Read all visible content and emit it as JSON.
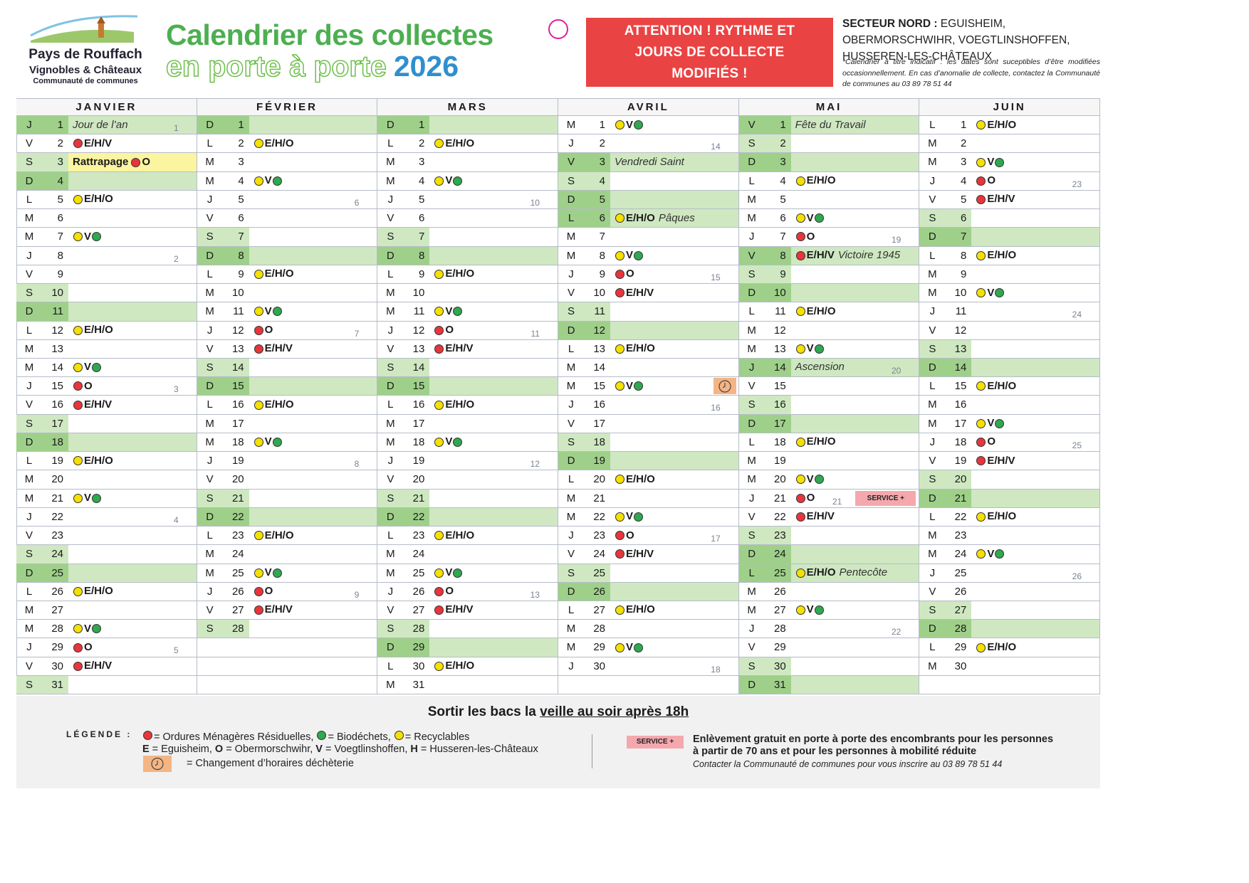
{
  "header": {
    "logo": [
      "Pays de Rouffach",
      "Vignobles & Châteaux",
      "Communauté de communes"
    ],
    "title_line1": "Calendrier des collectes",
    "title_line2": "en porte à porte",
    "year": "2026",
    "attention": "ATTENTION ! RYTHME ET JOURS DE COLLECTE MODIFIÉS !",
    "sector_label": "SECTEUR NORD :",
    "sector_towns": "EGUISHEIM, OBERMORSCHWIHR, VOEGTLINSHOFFEN, HUSSEREN-LES-CHÂTEAUX",
    "note": "*Calendrier à titre indicatif : les dates sont suceptibles d’être modifiées occasionnellement. En cas d’anomalie de collecte, contactez la Communauté de communes au 03 89 78 51 44"
  },
  "dot_colors": {
    "red": "#e8353c",
    "green": "#2fa84f",
    "yellow": "#f5e000"
  },
  "collection_styles": {
    "E/H/O": {
      "pre": "yellow"
    },
    "V": {
      "pre": "yellow",
      "post": "green"
    },
    "O": {
      "pre": "red"
    },
    "E/H/V": {
      "pre": "red"
    }
  },
  "calendar": {
    "months": [
      {
        "name": "JANVIER",
        "days": [
          {
            "d": "J",
            "n": 1,
            "t": "Jour de l’an",
            "w": 1,
            "h": true
          },
          {
            "d": "V",
            "n": 2,
            "c": "E/H/V"
          },
          {
            "d": "S",
            "n": 3,
            "lead": "Rattrapage",
            "c": "O"
          },
          {
            "d": "D",
            "n": 4
          },
          {
            "d": "L",
            "n": 5,
            "c": "E/H/O"
          },
          {
            "d": "M",
            "n": 6
          },
          {
            "d": "M",
            "n": 7,
            "c": "V"
          },
          {
            "d": "J",
            "n": 8,
            "w": 2
          },
          {
            "d": "V",
            "n": 9
          },
          {
            "d": "S",
            "n": 10
          },
          {
            "d": "D",
            "n": 11
          },
          {
            "d": "L",
            "n": 12,
            "c": "E/H/O"
          },
          {
            "d": "M",
            "n": 13
          },
          {
            "d": "M",
            "n": 14,
            "c": "V"
          },
          {
            "d": "J",
            "n": 15,
            "c": "O",
            "w": 3
          },
          {
            "d": "V",
            "n": 16,
            "c": "E/H/V"
          },
          {
            "d": "S",
            "n": 17
          },
          {
            "d": "D",
            "n": 18
          },
          {
            "d": "L",
            "n": 19,
            "c": "E/H/O"
          },
          {
            "d": "M",
            "n": 20
          },
          {
            "d": "M",
            "n": 21,
            "c": "V"
          },
          {
            "d": "J",
            "n": 22,
            "w": 4
          },
          {
            "d": "V",
            "n": 23
          },
          {
            "d": "S",
            "n": 24
          },
          {
            "d": "D",
            "n": 25
          },
          {
            "d": "L",
            "n": 26,
            "c": "E/H/O"
          },
          {
            "d": "M",
            "n": 27
          },
          {
            "d": "M",
            "n": 28,
            "c": "V"
          },
          {
            "d": "J",
            "n": 29,
            "c": "O",
            "w": 5
          },
          {
            "d": "V",
            "n": 30,
            "c": "E/H/V"
          },
          {
            "d": "S",
            "n": 31
          }
        ]
      },
      {
        "name": "FÉVRIER",
        "days": [
          {
            "d": "D",
            "n": 1
          },
          {
            "d": "L",
            "n": 2,
            "c": "E/H/O"
          },
          {
            "d": "M",
            "n": 3
          },
          {
            "d": "M",
            "n": 4,
            "c": "V"
          },
          {
            "d": "J",
            "n": 5,
            "w": 6
          },
          {
            "d": "V",
            "n": 6
          },
          {
            "d": "S",
            "n": 7
          },
          {
            "d": "D",
            "n": 8
          },
          {
            "d": "L",
            "n": 9,
            "c": "E/H/O"
          },
          {
            "d": "M",
            "n": 10
          },
          {
            "d": "M",
            "n": 11,
            "c": "V"
          },
          {
            "d": "J",
            "n": 12,
            "c": "O",
            "w": 7
          },
          {
            "d": "V",
            "n": 13,
            "c": "E/H/V"
          },
          {
            "d": "S",
            "n": 14
          },
          {
            "d": "D",
            "n": 15
          },
          {
            "d": "L",
            "n": 16,
            "c": "E/H/O"
          },
          {
            "d": "M",
            "n": 17
          },
          {
            "d": "M",
            "n": 18,
            "c": "V"
          },
          {
            "d": "J",
            "n": 19,
            "w": 8
          },
          {
            "d": "V",
            "n": 20
          },
          {
            "d": "S",
            "n": 21
          },
          {
            "d": "D",
            "n": 22
          },
          {
            "d": "L",
            "n": 23,
            "c": "E/H/O"
          },
          {
            "d": "M",
            "n": 24
          },
          {
            "d": "M",
            "n": 25,
            "c": "V"
          },
          {
            "d": "J",
            "n": 26,
            "c": "O",
            "w": 9
          },
          {
            "d": "V",
            "n": 27,
            "c": "E/H/V"
          },
          {
            "d": "S",
            "n": 28
          }
        ]
      },
      {
        "name": "MARS",
        "days": [
          {
            "d": "D",
            "n": 1
          },
          {
            "d": "L",
            "n": 2,
            "c": "E/H/O"
          },
          {
            "d": "M",
            "n": 3
          },
          {
            "d": "M",
            "n": 4,
            "c": "V"
          },
          {
            "d": "J",
            "n": 5,
            "w": 10
          },
          {
            "d": "V",
            "n": 6
          },
          {
            "d": "S",
            "n": 7
          },
          {
            "d": "D",
            "n": 8
          },
          {
            "d": "L",
            "n": 9,
            "c": "E/H/O"
          },
          {
            "d": "M",
            "n": 10
          },
          {
            "d": "M",
            "n": 11,
            "c": "V"
          },
          {
            "d": "J",
            "n": 12,
            "c": "O",
            "w": 11
          },
          {
            "d": "V",
            "n": 13,
            "c": "E/H/V"
          },
          {
            "d": "S",
            "n": 14
          },
          {
            "d": "D",
            "n": 15
          },
          {
            "d": "L",
            "n": 16,
            "c": "E/H/O"
          },
          {
            "d": "M",
            "n": 17
          },
          {
            "d": "M",
            "n": 18,
            "c": "V"
          },
          {
            "d": "J",
            "n": 19,
            "w": 12
          },
          {
            "d": "V",
            "n": 20
          },
          {
            "d": "S",
            "n": 21
          },
          {
            "d": "D",
            "n": 22
          },
          {
            "d": "L",
            "n": 23,
            "c": "E/H/O"
          },
          {
            "d": "M",
            "n": 24
          },
          {
            "d": "M",
            "n": 25,
            "c": "V"
          },
          {
            "d": "J",
            "n": 26,
            "c": "O",
            "w": 13
          },
          {
            "d": "V",
            "n": 27,
            "c": "E/H/V"
          },
          {
            "d": "S",
            "n": 28
          },
          {
            "d": "D",
            "n": 29
          },
          {
            "d": "L",
            "n": 30,
            "c": "E/H/O"
          },
          {
            "d": "M",
            "n": 31
          }
        ]
      },
      {
        "name": "AVRIL",
        "days": [
          {
            "d": "M",
            "n": 1,
            "c": "V"
          },
          {
            "d": "J",
            "n": 2,
            "w": 14
          },
          {
            "d": "V",
            "n": 3,
            "t": "Vendredi Saint",
            "h": true
          },
          {
            "d": "S",
            "n": 4
          },
          {
            "d": "D",
            "n": 5
          },
          {
            "d": "L",
            "n": 6,
            "c": "E/H/O",
            "t": "Pâques",
            "h": true
          },
          {
            "d": "M",
            "n": 7
          },
          {
            "d": "M",
            "n": 8,
            "c": "V"
          },
          {
            "d": "J",
            "n": 9,
            "c": "O",
            "w": 15
          },
          {
            "d": "V",
            "n": 10,
            "c": "E/H/V"
          },
          {
            "d": "S",
            "n": 11
          },
          {
            "d": "D",
            "n": 12
          },
          {
            "d": "L",
            "n": 13,
            "c": "E/H/O"
          },
          {
            "d": "M",
            "n": 14
          },
          {
            "d": "M",
            "n": 15,
            "c": "V",
            "icon": "clock"
          },
          {
            "d": "J",
            "n": 16,
            "w": 16
          },
          {
            "d": "V",
            "n": 17
          },
          {
            "d": "S",
            "n": 18
          },
          {
            "d": "D",
            "n": 19
          },
          {
            "d": "L",
            "n": 20,
            "c": "E/H/O"
          },
          {
            "d": "M",
            "n": 21
          },
          {
            "d": "M",
            "n": 22,
            "c": "V"
          },
          {
            "d": "J",
            "n": 23,
            "c": "O",
            "w": 17
          },
          {
            "d": "V",
            "n": 24,
            "c": "E/H/V"
          },
          {
            "d": "S",
            "n": 25
          },
          {
            "d": "D",
            "n": 26
          },
          {
            "d": "L",
            "n": 27,
            "c": "E/H/O"
          },
          {
            "d": "M",
            "n": 28
          },
          {
            "d": "M",
            "n": 29,
            "c": "V"
          },
          {
            "d": "J",
            "n": 30,
            "w": 18
          }
        ]
      },
      {
        "name": "MAI",
        "days": [
          {
            "d": "V",
            "n": 1,
            "t": "Fête du Travail",
            "h": true
          },
          {
            "d": "S",
            "n": 2
          },
          {
            "d": "D",
            "n": 3
          },
          {
            "d": "L",
            "n": 4,
            "c": "E/H/O"
          },
          {
            "d": "M",
            "n": 5
          },
          {
            "d": "M",
            "n": 6,
            "c": "V"
          },
          {
            "d": "J",
            "n": 7,
            "c": "O",
            "w": 19
          },
          {
            "d": "V",
            "n": 8,
            "c": "E/H/V",
            "t": "Victoire 1945",
            "h": true
          },
          {
            "d": "S",
            "n": 9
          },
          {
            "d": "D",
            "n": 10
          },
          {
            "d": "L",
            "n": 11,
            "c": "E/H/O"
          },
          {
            "d": "M",
            "n": 12
          },
          {
            "d": "M",
            "n": 13,
            "c": "V"
          },
          {
            "d": "J",
            "n": 14,
            "t": "Ascension",
            "w": 20,
            "h": true
          },
          {
            "d": "V",
            "n": 15
          },
          {
            "d": "S",
            "n": 16
          },
          {
            "d": "D",
            "n": 17
          },
          {
            "d": "L",
            "n": 18,
            "c": "E/H/O"
          },
          {
            "d": "M",
            "n": 19
          },
          {
            "d": "M",
            "n": 20,
            "c": "V"
          },
          {
            "d": "J",
            "n": 21,
            "c": "O",
            "w": 21,
            "b": "SERVICE +"
          },
          {
            "d": "V",
            "n": 22,
            "c": "E/H/V"
          },
          {
            "d": "S",
            "n": 23
          },
          {
            "d": "D",
            "n": 24
          },
          {
            "d": "L",
            "n": 25,
            "c": "E/H/O",
            "t": "Pentecôte",
            "h": true
          },
          {
            "d": "M",
            "n": 26
          },
          {
            "d": "M",
            "n": 27,
            "c": "V"
          },
          {
            "d": "J",
            "n": 28,
            "w": 22
          },
          {
            "d": "V",
            "n": 29
          },
          {
            "d": "S",
            "n": 30
          },
          {
            "d": "D",
            "n": 31
          }
        ]
      },
      {
        "name": "JUIN",
        "days": [
          {
            "d": "L",
            "n": 1,
            "c": "E/H/O"
          },
          {
            "d": "M",
            "n": 2
          },
          {
            "d": "M",
            "n": 3,
            "c": "V"
          },
          {
            "d": "J",
            "n": 4,
            "c": "O",
            "w": 23
          },
          {
            "d": "V",
            "n": 5,
            "c": "E/H/V"
          },
          {
            "d": "S",
            "n": 6
          },
          {
            "d": "D",
            "n": 7
          },
          {
            "d": "L",
            "n": 8,
            "c": "E/H/O"
          },
          {
            "d": "M",
            "n": 9
          },
          {
            "d": "M",
            "n": 10,
            "c": "V"
          },
          {
            "d": "J",
            "n": 11,
            "w": 24
          },
          {
            "d": "V",
            "n": 12
          },
          {
            "d": "S",
            "n": 13
          },
          {
            "d": "D",
            "n": 14
          },
          {
            "d": "L",
            "n": 15,
            "c": "E/H/O"
          },
          {
            "d": "M",
            "n": 16
          },
          {
            "d": "M",
            "n": 17,
            "c": "V"
          },
          {
            "d": "J",
            "n": 18,
            "c": "O",
            "w": 25
          },
          {
            "d": "V",
            "n": 19,
            "c": "E/H/V"
          },
          {
            "d": "S",
            "n": 20
          },
          {
            "d": "D",
            "n": 21
          },
          {
            "d": "L",
            "n": 22,
            "c": "E/H/O"
          },
          {
            "d": "M",
            "n": 23
          },
          {
            "d": "M",
            "n": 24,
            "c": "V"
          },
          {
            "d": "J",
            "n": 25,
            "w": 26
          },
          {
            "d": "V",
            "n": 26
          },
          {
            "d": "S",
            "n": 27
          },
          {
            "d": "D",
            "n": 28
          },
          {
            "d": "L",
            "n": 29,
            "c": "E/H/O"
          },
          {
            "d": "M",
            "n": 30
          }
        ]
      }
    ]
  },
  "footer": {
    "reminder_start": "Sortir les bacs la",
    "reminder_underlined": "veille au soir après 18h",
    "legend_label": "LÉGENDE :",
    "legend_dots": [
      {
        "color": "red",
        "text": "= Ordures Ménagères Résiduelles,"
      },
      {
        "color": "green",
        "text": "= Biodéchets,"
      },
      {
        "color": "yellow",
        "text": "= Recyclables"
      }
    ],
    "legend_towns": [
      {
        "code": "E",
        "text": "= Eguisheim,"
      },
      {
        "code": "O",
        "text": "= Obermorschwihr,"
      },
      {
        "code": "V",
        "text": "= Voegtlinshoffen,"
      },
      {
        "code": "H",
        "text": "= Husseren-les-Châteaux"
      }
    ],
    "legend_icon_text": "= Changement d’horaires déchèterie",
    "service_badge": "SERVICE +",
    "service_text": "Enlèvement gratuit en porte à porte des encombrants pour les personnes à partir de 70 ans et pour les personnes à mobilité réduite",
    "service_contact": "Contacter la Communauté de communes pour vous inscrire au 03 89 78 51 44"
  }
}
